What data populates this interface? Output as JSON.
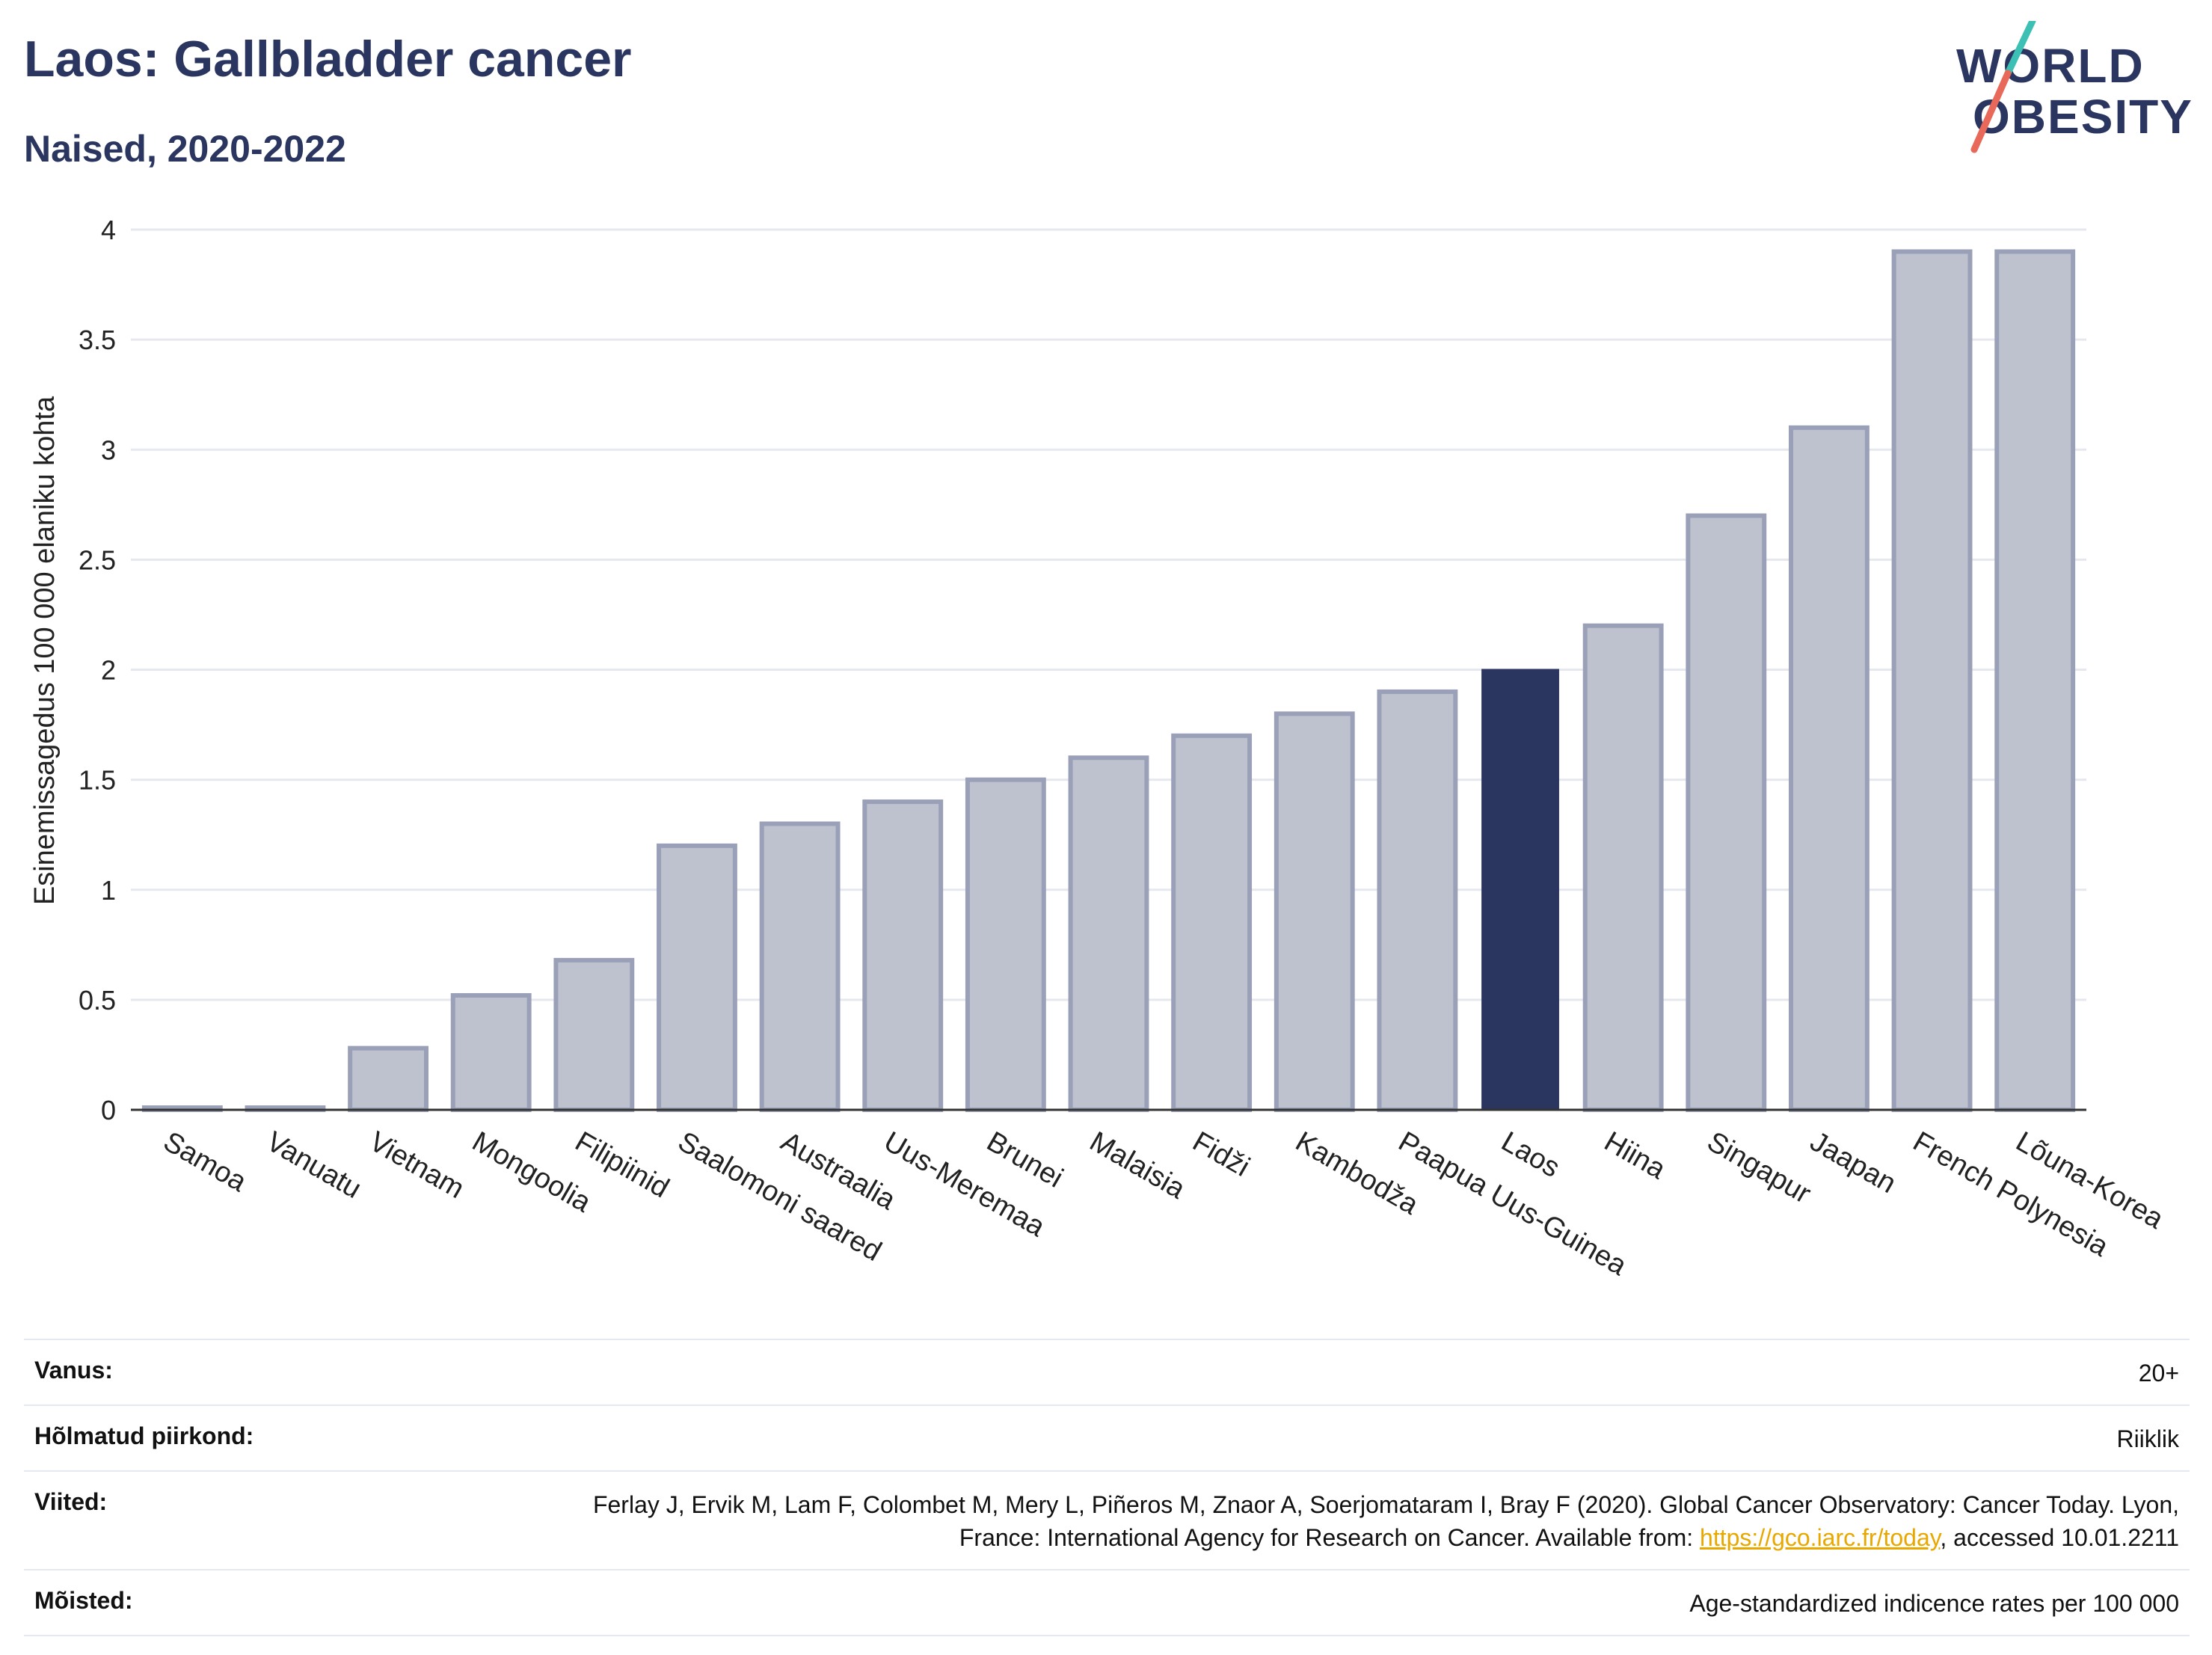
{
  "header": {
    "title": "Laos: Gallbladder cancer",
    "subtitle": "Naised, 2020-2022"
  },
  "logo": {
    "line1": "WORLD",
    "line2": "OBESITY"
  },
  "colors": {
    "highlight": "#2a3560",
    "bar_fill": "#bec2cf",
    "bar_stroke": "#9aa0b8",
    "grid": "#e6e8ef",
    "link": "#e8a800"
  },
  "chart_data": {
    "type": "bar",
    "title": "Laos: Gallbladder cancer",
    "subtitle": "Naised, 2020-2022",
    "ylabel": "Esinemissagedus 100 000 elaniku kohta",
    "xlabel": "",
    "ylim": [
      0,
      4
    ],
    "yticks": [
      0,
      0.5,
      1,
      1.5,
      2,
      2.5,
      3,
      3.5,
      4
    ],
    "highlight": "Laos",
    "grid": true,
    "categories": [
      "Samoa",
      "Vanuatu",
      "Vietnam",
      "Mongoolia",
      "Filipiinid",
      "Saalomoni saared",
      "Austraalia",
      "Uus-Meremaa",
      "Brunei",
      "Malaisia",
      "Fidži",
      "Kambodža",
      "Paapua Uus-Guinea",
      "Laos",
      "Hiina",
      "Singapur",
      "Jaapan",
      "French Polynesia",
      "Lõuna-Korea"
    ],
    "values": [
      0.01,
      0.01,
      0.28,
      0.52,
      0.68,
      1.2,
      1.3,
      1.4,
      1.5,
      1.6,
      1.7,
      1.8,
      1.9,
      2.0,
      2.2,
      2.7,
      3.1,
      3.9,
      3.9
    ]
  },
  "info": {
    "age_label": "Vanus:",
    "age_value": "20+",
    "coverage_label": "Hõlmatud piirkond:",
    "coverage_value": "Riiklik",
    "refs_label": "Viited:",
    "refs_text_1": "Ferlay J, Ervik M, Lam F, Colombet M, Mery L, Piñeros M, Znaor A, Soerjomataram I, Bray F (2020). Global Cancer Observatory: Cancer Today. Lyon, France: International Agency for Research on Cancer. Available from: ",
    "refs_link": "https://gco.iarc.fr/today",
    "refs_text_2": ", accessed 10.01.2211",
    "definitions_label": "Mõisted:",
    "definitions_value": "Age-standardized indicence rates per 100 000"
  }
}
